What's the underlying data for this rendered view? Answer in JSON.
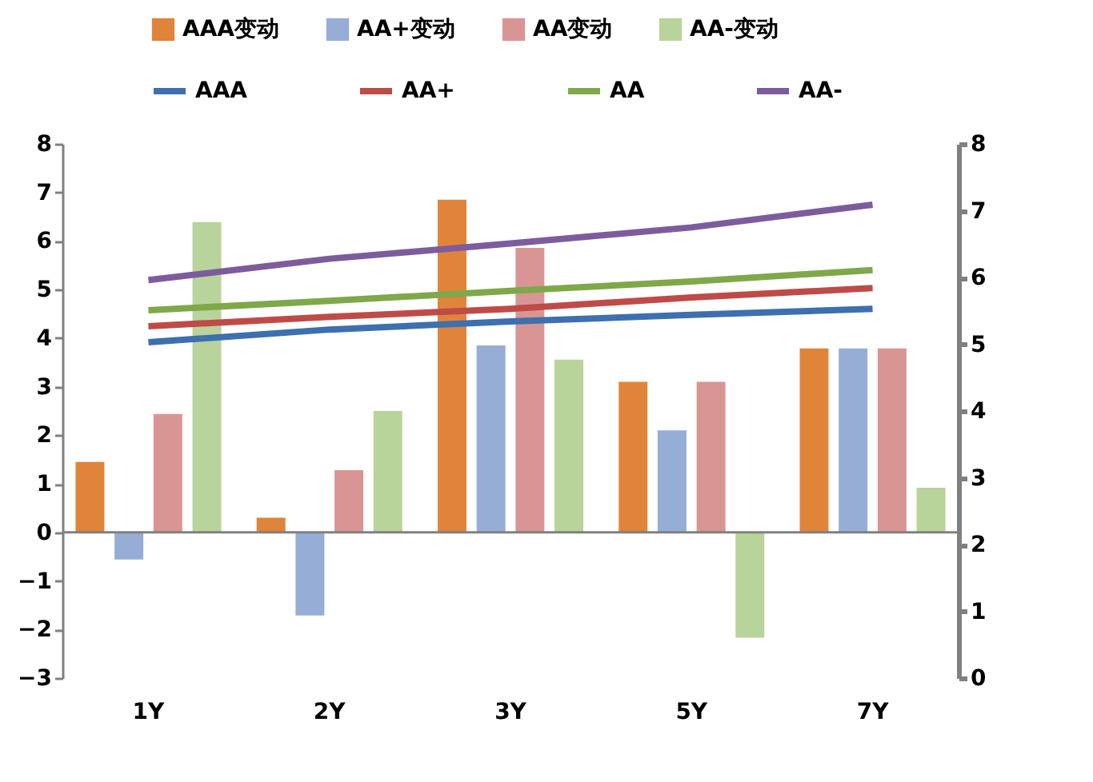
{
  "chart_data": {
    "type": "bar",
    "categories": [
      "1Y",
      "2Y",
      "3Y",
      "5Y",
      "7Y"
    ],
    "series": [
      {
        "name": "AAA变动",
        "color": "#e0843a",
        "values": [
          1.45,
          0.3,
          6.85,
          3.1,
          3.79
        ]
      },
      {
        "name": "AA+变动",
        "color": "#96add6",
        "values": [
          -0.56,
          -1.71,
          3.85,
          2.1,
          3.79
        ]
      },
      {
        "name": "AA变动",
        "color": "#d99594",
        "values": [
          2.44,
          1.28,
          5.86,
          3.1,
          3.79
        ]
      },
      {
        "name": "AA-变动",
        "color": "#b8d49a",
        "values": [
          6.39,
          2.5,
          3.56,
          -2.17,
          0.92
        ]
      },
      {
        "name": "AAA",
        "type": "line",
        "axis": "y2",
        "color": "#3e6fae",
        "values": [
          5.03,
          5.22,
          5.34,
          5.44,
          5.53
        ]
      },
      {
        "name": "AA+",
        "type": "line",
        "axis": "y2",
        "color": "#be4b48",
        "values": [
          5.27,
          5.41,
          5.53,
          5.7,
          5.84
        ]
      },
      {
        "name": "AA",
        "type": "line",
        "axis": "y2",
        "color": "#7fa84a",
        "values": [
          5.51,
          5.65,
          5.8,
          5.94,
          6.11
        ]
      },
      {
        "name": "AA-",
        "type": "line",
        "axis": "y2",
        "color": "#7d5c9e",
        "values": [
          5.96,
          6.28,
          6.51,
          6.75,
          7.09
        ]
      }
    ],
    "ylim": [
      -3,
      8
    ],
    "yticks": [
      -3,
      -2,
      -1,
      0,
      1,
      2,
      3,
      4,
      5,
      6,
      7,
      8
    ],
    "y2lim": [
      0,
      8
    ],
    "y2ticks": [
      0,
      1,
      2,
      3,
      4,
      5,
      6,
      7,
      8
    ],
    "ref_lines": [
      {
        "axis": "y",
        "value": 0,
        "color": "#808080"
      }
    ],
    "grid": false,
    "legend": "top"
  }
}
